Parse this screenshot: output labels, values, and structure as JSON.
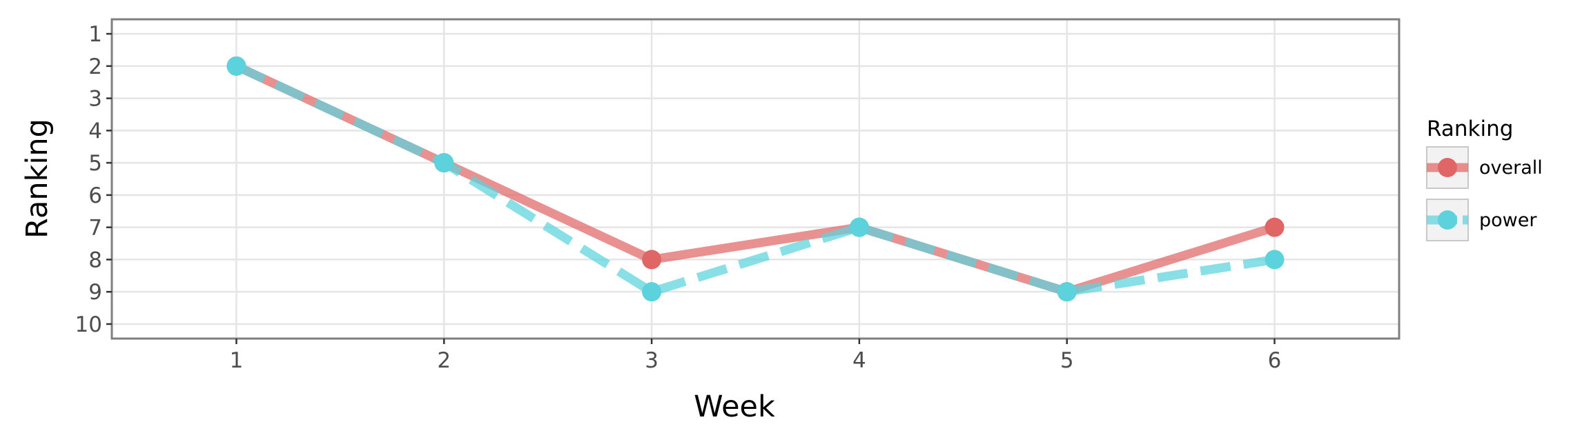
{
  "chart_data": {
    "type": "line",
    "xlabel": "Week",
    "ylabel": "Ranking",
    "x": [
      1,
      2,
      3,
      4,
      5,
      6
    ],
    "xlim": [
      0.4,
      6.6
    ],
    "xticks": [
      1,
      2,
      3,
      4,
      5,
      6
    ],
    "ylim": [
      10.45,
      0.55
    ],
    "y_reversed": true,
    "yticks": [
      1,
      2,
      3,
      4,
      5,
      6,
      7,
      8,
      9,
      10
    ],
    "grid": true,
    "legend": {
      "title": "Ranking",
      "placement": "right"
    },
    "series": [
      {
        "name": "overall",
        "values": [
          2,
          5,
          8,
          7,
          9,
          7
        ],
        "color": "#e06666",
        "line_style": "solid"
      },
      {
        "name": "power",
        "values": [
          2,
          5,
          9,
          7,
          9,
          8
        ],
        "color": "#5bd2dc",
        "line_style": "dashed"
      }
    ]
  }
}
